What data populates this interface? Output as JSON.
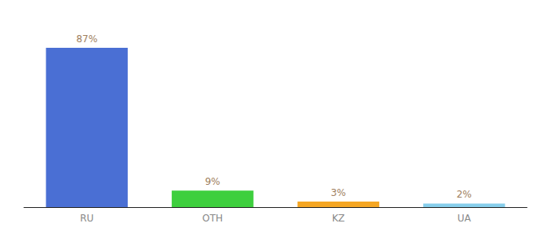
{
  "chart_data": {
    "type": "bar",
    "categories": [
      "RU",
      "OTH",
      "KZ",
      "UA"
    ],
    "values": [
      87,
      9,
      3,
      2
    ],
    "value_labels": [
      "87%",
      "9%",
      "3%",
      "2%"
    ],
    "colors": [
      "#4a6fd4",
      "#3ecf3e",
      "#f5a623",
      "#87ceeb"
    ],
    "ylim": [
      0,
      100
    ],
    "grid": false,
    "data_labels": true,
    "tick_labels": "x"
  }
}
